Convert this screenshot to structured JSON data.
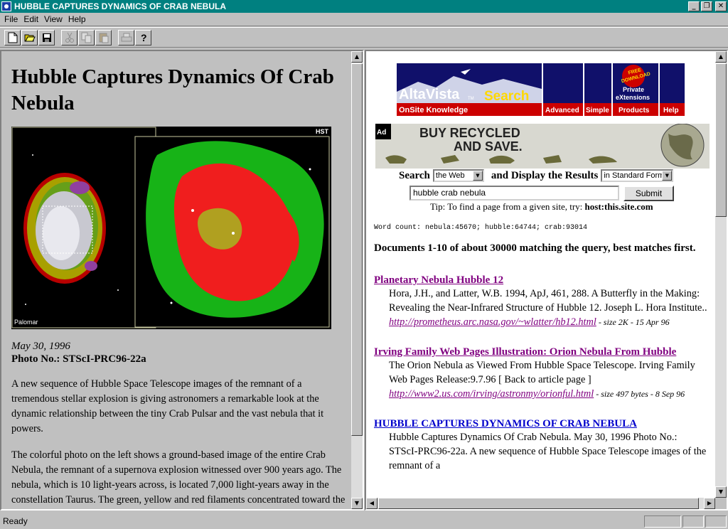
{
  "window": {
    "title": "HUBBLE CAPTURES DYNAMICS OF CRAB NEBULA",
    "buttons": {
      "minimize": "_",
      "maximize": "❐",
      "close": "✕"
    }
  },
  "menu": [
    "File",
    "Edit",
    "View",
    "Help"
  ],
  "toolbar": [
    "new-document-icon",
    "open-folder-icon",
    "save-icon",
    "cut-icon",
    "copy-icon",
    "paste-icon",
    "print-icon",
    "help-icon"
  ],
  "left": {
    "title": "Hubble Captures Dynamics Of Crab Nebula",
    "image_labels": {
      "hst": "HST",
      "palomar": "Palomar"
    },
    "date": "May 30, 1996",
    "photo_no": "Photo No.: STScI-PRC96-22a",
    "paragraphs": [
      "A new sequence of Hubble Space Telescope images of the remnant of a tremendous stellar explosion is giving astronomers a remarkable look at the dynamic relationship between the tiny Crab Pulsar and the vast nebula that it powers.",
      "The colorful photo on the left shows a ground-based image of the entire Crab Nebula, the remnant of a supernova explosion witnessed over 900 years ago. The nebula, which is 10 light-years across, is located 7,000 light-years away in the constellation Taurus. The green, yellow and red filaments concentrated toward the edges of the nebula are remnants of the star that were ejected into"
    ]
  },
  "right": {
    "altavista": {
      "brand": "AltaVista",
      "tm": "TM",
      "search": "Search",
      "tagline": "OnSite Knowledge",
      "tabs": [
        "Advanced",
        "Simple",
        "Products",
        "Help"
      ],
      "badge_line1": "FREE",
      "badge_line2": "DOWNLOAD",
      "private_line1": "Private",
      "private_line2": "eXtensions"
    },
    "ad": {
      "tag": "Ad",
      "line1": "BUY RECYCLED",
      "line2": "AND SAVE."
    },
    "search": {
      "label": "Search",
      "where": "the Web",
      "display_label": "and Display the Results",
      "form": "in Standard Form",
      "query": "hubble crab nebula",
      "submit": "Submit"
    },
    "tip": {
      "text": "Tip: To find a page from a given site, try:",
      "example": "host:this.site.com"
    },
    "word_count": "Word count: nebula:45670; hubble:64744; crab:93014",
    "summary": "Documents 1-10 of about 30000 matching the query, best matches first.",
    "results": [
      {
        "title": "Planetary Nebula Hubble 12",
        "body": "Hora, J.H., and Latter, W.B. 1994, ApJ, 461, 288. A Butterfly in the Making: Revealing the Near-Infrared Structure of Hubble 12. Joseph L. Hora Institute..",
        "url": "http://prometheus.arc.nasa.gov/~wlatter/hb12.html",
        "meta": " - size 2K - 15 Apr 96"
      },
      {
        "title": "Irving Family Web Pages Illustration: Orion Nebula From Hubble",
        "body": "The Orion Nebula as Viewed From Hubble Space Telescope. Irving Family Web Pages Release:9.7.96 [ Back to article page ]",
        "url": "http://www2.us.com/irving/astronmy/orionful.html",
        "meta": " - size 497 bytes - 8 Sep 96"
      },
      {
        "title": "HUBBLE CAPTURES DYNAMICS OF CRAB NEBULA",
        "body": "Hubble Captures Dynamics Of Crab Nebula. May 30, 1996 Photo No.: STScI-PRC96-22a. A new sequence of Hubble Space Telescope images of the remnant of a",
        "url": "",
        "meta": ""
      }
    ]
  },
  "status": {
    "text": "Ready"
  }
}
